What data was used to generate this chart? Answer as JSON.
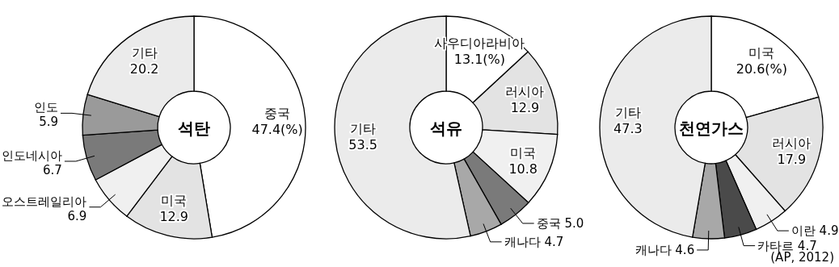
{
  "chart_data": [
    {
      "type": "donut",
      "title": "석탄",
      "categories": [
        "중국",
        "미국",
        "오스트레일리아",
        "인도네시아",
        "인도",
        "기타"
      ],
      "values": [
        47.4,
        12.9,
        6.9,
        6.7,
        5.9,
        20.2
      ],
      "value_labels": [
        "47.4(%)",
        "12.9",
        "6.9",
        "6.7",
        "5.9",
        "20.2"
      ],
      "colors": [
        "#ffffff",
        "#e3e3e3",
        "#f0f0f0",
        "#7a7a7a",
        "#9a9a9a",
        "#ebebeb"
      ]
    },
    {
      "type": "donut",
      "title": "석유",
      "categories": [
        "사우디아라비아",
        "러시아",
        "미국",
        "중국",
        "캐나다",
        "기타"
      ],
      "values": [
        13.1,
        12.9,
        10.8,
        5.0,
        4.7,
        53.5
      ],
      "value_labels": [
        "13.1(%)",
        "12.9",
        "10.8",
        "5.0",
        "4.7",
        "53.5"
      ],
      "colors": [
        "#ffffff",
        "#e3e3e3",
        "#f0f0f0",
        "#7a7a7a",
        "#a8a8a8",
        "#ebebeb"
      ]
    },
    {
      "type": "donut",
      "title": "천연가스",
      "categories": [
        "미국",
        "러시아",
        "이란",
        "카타르",
        "캐나다",
        "기타"
      ],
      "values": [
        20.6,
        17.9,
        4.9,
        4.7,
        4.6,
        47.3
      ],
      "value_labels": [
        "20.6(%)",
        "17.9",
        "4.9",
        "4.7",
        "4.6",
        "47.3"
      ],
      "colors": [
        "#ffffff",
        "#e3e3e3",
        "#f0f0f0",
        "#4a4a4a",
        "#a8a8a8",
        "#ebebeb"
      ],
      "annotations": [
        "(AP, 2012)"
      ]
    }
  ]
}
